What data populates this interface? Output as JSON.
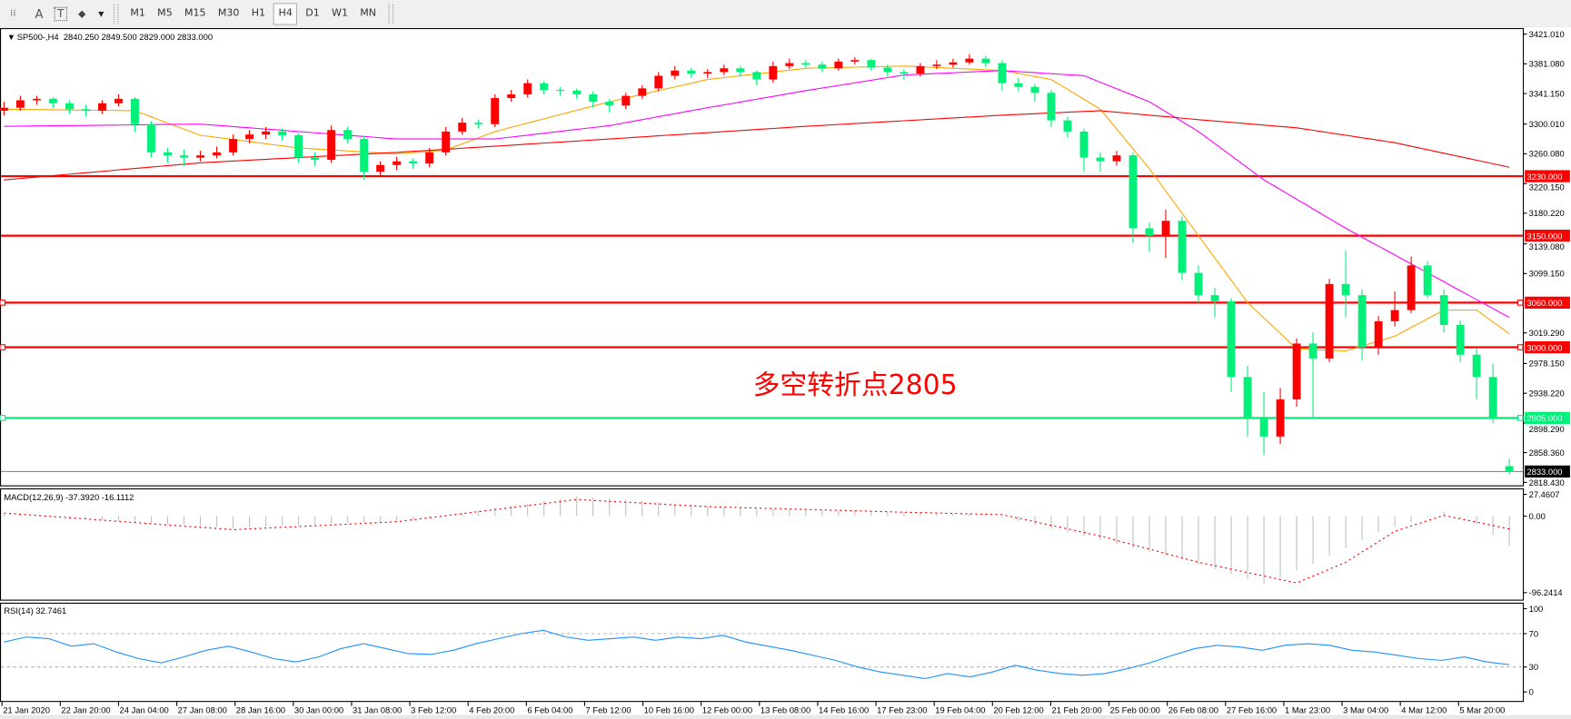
{
  "toolbar": {
    "tools": [
      {
        "name": "grid-tool",
        "glyph": "⁞⁞"
      },
      {
        "name": "text-tool",
        "glyph": "A"
      },
      {
        "name": "text-label-tool",
        "glyph": "T"
      },
      {
        "name": "arrows-tool",
        "glyph": "⬥"
      }
    ],
    "dropdown_glyph": "▾",
    "timeframes": [
      "M1",
      "M5",
      "M15",
      "M30",
      "H1",
      "H4",
      "D1",
      "W1",
      "MN"
    ],
    "active_timeframe": "H4"
  },
  "chart_data": [
    {
      "type": "candlestick",
      "title": "SP500-,H4  2840.250 2849.500 2829.000 2833.000",
      "symbol": "SP500-",
      "timeframe": "H4",
      "ohlc_current": [
        2840.25,
        2849.5,
        2829.0,
        2833.0
      ],
      "ylim": [
        2818.43,
        3421.01
      ],
      "y_ticks": [
        "3421.010",
        "3381.080",
        "3341.150",
        "3300.010",
        "3260.080",
        "3220.150",
        "3180.220",
        "3139.080",
        "3099.150",
        "3019.290",
        "2978.150",
        "2938.220",
        "2898.290",
        "2858.360",
        "2818.430"
      ],
      "x_ticks": [
        "21 Jan 2020",
        "22 Jan 20:00",
        "24 Jan 04:00",
        "27 Jan 08:00",
        "28 Jan 16:00",
        "30 Jan 00:00",
        "31 Jan 08:00",
        "3 Feb 12:00",
        "4 Feb 20:00",
        "6 Feb 04:00",
        "7 Feb 12:00",
        "10 Feb 16:00",
        "12 Feb 00:00",
        "13 Feb 08:00",
        "14 Feb 16:00",
        "17 Feb 23:00",
        "19 Feb 04:00",
        "20 Feb 12:00",
        "21 Feb 20:00",
        "25 Feb 00:00",
        "26 Feb 08:00",
        "27 Feb 16:00",
        "1 Mar 23:00",
        "3 Mar 04:00",
        "4 Mar 12:00",
        "5 Mar 20:00"
      ],
      "up_color": "#ff0000",
      "down_color": "#00f07a",
      "candles": [
        [
          3318,
          3330,
          3312,
          3322
        ],
        [
          3322,
          3338,
          3318,
          3332
        ],
        [
          3332,
          3338,
          3326,
          3334
        ],
        [
          3334,
          3336,
          3322,
          3328
        ],
        [
          3328,
          3332,
          3314,
          3320
        ],
        [
          3320,
          3326,
          3310,
          3318
        ],
        [
          3318,
          3332,
          3314,
          3328
        ],
        [
          3328,
          3340,
          3324,
          3334
        ],
        [
          3334,
          3336,
          3290,
          3300
        ],
        [
          3300,
          3304,
          3255,
          3262
        ],
        [
          3262,
          3268,
          3248,
          3258
        ],
        [
          3258,
          3266,
          3244,
          3255
        ],
        [
          3255,
          3264,
          3250,
          3258
        ],
        [
          3258,
          3270,
          3254,
          3262
        ],
        [
          3262,
          3286,
          3258,
          3280
        ],
        [
          3280,
          3292,
          3274,
          3286
        ],
        [
          3286,
          3296,
          3280,
          3290
        ],
        [
          3290,
          3294,
          3278,
          3285
        ],
        [
          3285,
          3288,
          3248,
          3255
        ],
        [
          3255,
          3262,
          3244,
          3252
        ],
        [
          3252,
          3298,
          3248,
          3292
        ],
        [
          3292,
          3296,
          3274,
          3280
        ],
        [
          3280,
          3284,
          3225,
          3236
        ],
        [
          3236,
          3250,
          3230,
          3245
        ],
        [
          3245,
          3256,
          3238,
          3250
        ],
        [
          3250,
          3254,
          3240,
          3247
        ],
        [
          3247,
          3268,
          3242,
          3262
        ],
        [
          3262,
          3296,
          3258,
          3290
        ],
        [
          3290,
          3308,
          3286,
          3302
        ],
        [
          3302,
          3306,
          3294,
          3300
        ],
        [
          3300,
          3340,
          3296,
          3335
        ],
        [
          3335,
          3346,
          3330,
          3340
        ],
        [
          3340,
          3360,
          3336,
          3355
        ],
        [
          3355,
          3358,
          3340,
          3346
        ],
        [
          3346,
          3350,
          3338,
          3345
        ],
        [
          3345,
          3348,
          3334,
          3340
        ],
        [
          3340,
          3344,
          3322,
          3330
        ],
        [
          3330,
          3334,
          3316,
          3325
        ],
        [
          3325,
          3342,
          3320,
          3338
        ],
        [
          3338,
          3352,
          3334,
          3348
        ],
        [
          3348,
          3370,
          3344,
          3365
        ],
        [
          3365,
          3378,
          3360,
          3372
        ],
        [
          3372,
          3376,
          3362,
          3368
        ],
        [
          3368,
          3374,
          3362,
          3370
        ],
        [
          3370,
          3380,
          3366,
          3375
        ],
        [
          3375,
          3378,
          3364,
          3370
        ],
        [
          3370,
          3372,
          3352,
          3360
        ],
        [
          3360,
          3384,
          3356,
          3378
        ],
        [
          3378,
          3388,
          3374,
          3382
        ],
        [
          3382,
          3386,
          3376,
          3380
        ],
        [
          3380,
          3384,
          3370,
          3375
        ],
        [
          3375,
          3388,
          3372,
          3384
        ],
        [
          3384,
          3390,
          3380,
          3386
        ],
        [
          3386,
          3388,
          3372,
          3376
        ],
        [
          3376,
          3380,
          3364,
          3370
        ],
        [
          3370,
          3374,
          3360,
          3368
        ],
        [
          3368,
          3382,
          3364,
          3378
        ],
        [
          3378,
          3386,
          3374,
          3380
        ],
        [
          3380,
          3388,
          3376,
          3383
        ],
        [
          3383,
          3394,
          3380,
          3388
        ],
        [
          3388,
          3392,
          3376,
          3382
        ],
        [
          3382,
          3386,
          3345,
          3355
        ],
        [
          3355,
          3362,
          3344,
          3350
        ],
        [
          3350,
          3354,
          3330,
          3342
        ],
        [
          3342,
          3346,
          3296,
          3305
        ],
        [
          3305,
          3310,
          3282,
          3290
        ],
        [
          3290,
          3294,
          3236,
          3255
        ],
        [
          3255,
          3262,
          3236,
          3250
        ],
        [
          3250,
          3264,
          3244,
          3258
        ],
        [
          3258,
          3262,
          3140,
          3160
        ],
        [
          3160,
          3168,
          3128,
          3150
        ],
        [
          3150,
          3185,
          3120,
          3170
        ],
        [
          3170,
          3176,
          3090,
          3100
        ],
        [
          3100,
          3110,
          3060,
          3070
        ],
        [
          3070,
          3080,
          3040,
          3062
        ],
        [
          3062,
          3066,
          2940,
          2960
        ],
        [
          2960,
          2975,
          2880,
          2905
        ],
        [
          2905,
          2940,
          2855,
          2880
        ],
        [
          2880,
          2945,
          2870,
          2930
        ],
        [
          2930,
          3012,
          2920,
          3005
        ],
        [
          3005,
          3020,
          2905,
          2985
        ],
        [
          2985,
          3092,
          2980,
          3085
        ],
        [
          3085,
          3130,
          3040,
          3070
        ],
        [
          3070,
          3078,
          2982,
          3000
        ],
        [
          3000,
          3042,
          2990,
          3035
        ],
        [
          3035,
          3075,
          3028,
          3050
        ],
        [
          3050,
          3122,
          3046,
          3110
        ],
        [
          3110,
          3116,
          3066,
          3070
        ],
        [
          3070,
          3078,
          3020,
          3030
        ],
        [
          3030,
          3036,
          2980,
          2990
        ],
        [
          2990,
          2998,
          2930,
          2960
        ],
        [
          2960,
          2978,
          2898,
          2905
        ],
        [
          2840.25,
          2849.5,
          2829,
          2833
        ]
      ],
      "moving_averages": [
        {
          "color": "#ffa500",
          "points": [
            [
              0,
              3320
            ],
            [
              8,
              3318
            ],
            [
              12,
              3285
            ],
            [
              18,
              3268
            ],
            [
              24,
              3260
            ],
            [
              27,
              3265
            ],
            [
              30,
              3290
            ],
            [
              37,
              3330
            ],
            [
              43,
              3360
            ],
            [
              49,
              3375
            ],
            [
              55,
              3378
            ],
            [
              61,
              3372
            ],
            [
              64,
              3360
            ],
            [
              67,
              3320
            ],
            [
              70,
              3240
            ],
            [
              73,
              3150
            ],
            [
              76,
              3060
            ],
            [
              79,
              2998
            ],
            [
              82,
              2995
            ],
            [
              85,
              3015
            ],
            [
              88,
              3050
            ],
            [
              90,
              3050
            ],
            [
              92,
              3018
            ]
          ]
        },
        {
          "color": "#ff00ff",
          "points": [
            [
              0,
              3297
            ],
            [
              12,
              3300
            ],
            [
              24,
              3280
            ],
            [
              30,
              3280
            ],
            [
              37,
              3298
            ],
            [
              43,
              3322
            ],
            [
              49,
              3345
            ],
            [
              55,
              3366
            ],
            [
              61,
              3372
            ],
            [
              66,
              3365
            ],
            [
              70,
              3330
            ],
            [
              73,
              3290
            ],
            [
              77,
              3225
            ],
            [
              82,
              3160
            ],
            [
              87,
              3100
            ],
            [
              92,
              3040
            ]
          ]
        },
        {
          "color": "#ff0000",
          "points": [
            [
              0,
              3225
            ],
            [
              12,
              3248
            ],
            [
              24,
              3262
            ],
            [
              37,
              3280
            ],
            [
              49,
              3297
            ],
            [
              61,
              3312
            ],
            [
              67,
              3318
            ],
            [
              73,
              3306
            ],
            [
              79,
              3295
            ],
            [
              85,
              3275
            ],
            [
              92,
              3242
            ]
          ]
        }
      ],
      "horizontal_levels": [
        {
          "price": 3230,
          "label": "3230.000",
          "color": "#ff0000"
        },
        {
          "price": 3150,
          "label": "3150.000",
          "color": "#ff0000"
        },
        {
          "price": 3060,
          "label": "3060.000",
          "color": "#ff0000"
        },
        {
          "price": 3000,
          "label": "3000.000",
          "color": "#ff0000"
        },
        {
          "price": 2905,
          "label": "2905.000",
          "color": "#00f07a"
        },
        {
          "price": 2833,
          "label": "2833.000",
          "color": "#708090"
        }
      ],
      "annotation": {
        "text": "多空转折点2805",
        "color": "#ff0000"
      }
    },
    {
      "type": "macd",
      "title": "MACD(12,26,9) -37.3920 -16.1112",
      "ylim": [
        -96.2414,
        27.4607
      ],
      "y_ticks": [
        "27.4607",
        "0.00",
        "-96.2414"
      ],
      "histogram_color": "#c0c0c0",
      "signal_color": "#ff0000",
      "histogram": [
        [
          0,
          3
        ],
        [
          14,
          -15
        ],
        [
          25,
          -5
        ],
        [
          35,
          25
        ],
        [
          45,
          10
        ],
        [
          60,
          3
        ],
        [
          66,
          -25
        ],
        [
          72,
          -55
        ],
        [
          77,
          -85
        ],
        [
          80,
          -60
        ],
        [
          84,
          -20
        ],
        [
          88,
          5
        ],
        [
          90,
          -10
        ],
        [
          92,
          -37.392
        ]
      ],
      "signal": [
        [
          0,
          4
        ],
        [
          14,
          -17
        ],
        [
          24,
          -7
        ],
        [
          35,
          21
        ],
        [
          43,
          12
        ],
        [
          55,
          5
        ],
        [
          61,
          2
        ],
        [
          67,
          -25
        ],
        [
          73,
          -58
        ],
        [
          79,
          -84
        ],
        [
          82,
          -58
        ],
        [
          85,
          -19
        ],
        [
          88,
          1
        ],
        [
          92,
          -16.1112
        ]
      ]
    },
    {
      "type": "line",
      "title": "RSI(14) 32.7461",
      "ylim": [
        0,
        100
      ],
      "y_ticks": [
        "100",
        "70",
        "30",
        "0"
      ],
      "levels": [
        70,
        30
      ],
      "color": "#1e90ff",
      "values": [
        60,
        66,
        64,
        55,
        58,
        48,
        40,
        35,
        42,
        50,
        55,
        48,
        40,
        36,
        42,
        52,
        58,
        52,
        46,
        45,
        50,
        58,
        64,
        70,
        74,
        66,
        62,
        64,
        66,
        62,
        66,
        64,
        68,
        60,
        55,
        50,
        44,
        38,
        30,
        24,
        20,
        16,
        22,
        18,
        24,
        32,
        26,
        22,
        20,
        22,
        28,
        35,
        44,
        52,
        56,
        54,
        50,
        56,
        58,
        56,
        50,
        48,
        44,
        40,
        38,
        42,
        36,
        32.7461
      ]
    }
  ]
}
